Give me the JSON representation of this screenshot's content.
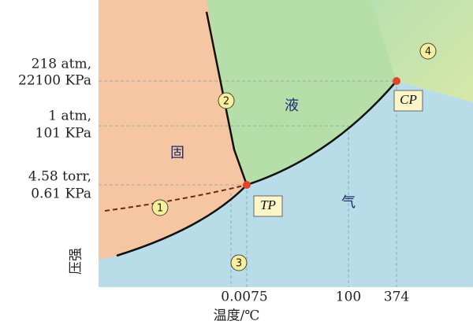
{
  "y_labels": [
    [
      "218 atm,",
      "22100 KPa"
    ],
    [
      "1 atm,",
      "101 KPa"
    ],
    [
      "4.58 torr,",
      "0.61 KPa"
    ]
  ],
  "y_axis_title": "压强",
  "x_labels": [
    "0.0075",
    "100",
    "374"
  ],
  "x_axis_title": "温度/℃",
  "regions": {
    "liquid": "液",
    "solid": "固",
    "gas": "气"
  },
  "points": {
    "triple": "TP",
    "critical": "CP"
  },
  "markers": [
    "1",
    "2",
    "3",
    "4"
  ]
}
